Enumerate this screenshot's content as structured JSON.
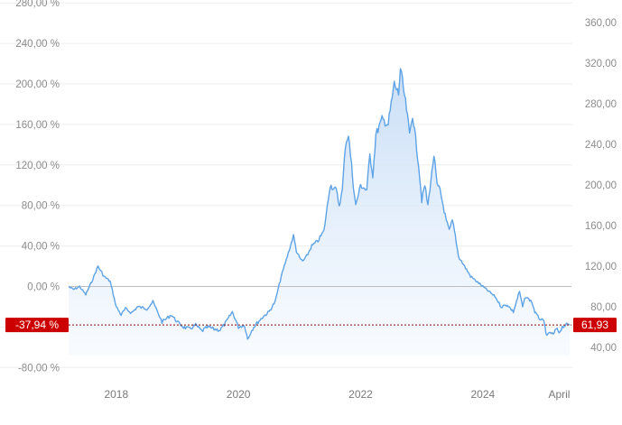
{
  "chart_data": {
    "type": "area",
    "left_axis": {
      "ticks": [
        280,
        240,
        200,
        160,
        120,
        80,
        40,
        0,
        -40,
        -80
      ],
      "tick_labels": [
        "280,00 %",
        "240,00 %",
        "200,00 %",
        "160,00 %",
        "120,00 %",
        "80,00 %",
        "40,00 %",
        "0,00 %",
        "",
        "-80,00 %"
      ],
      "range": [
        -97,
        283
      ]
    },
    "right_axis": {
      "ticks": [
        360,
        320,
        280,
        240,
        200,
        160,
        120,
        80,
        40
      ],
      "tick_labels": [
        "360,00",
        "320,00",
        "280,00",
        "240,00",
        "200,00",
        "160,00",
        "120,00",
        "80,00",
        "40,00"
      ]
    },
    "x_axis": {
      "range": [
        2017.22,
        2025.45
      ],
      "ticks": [
        2018.0,
        2020.0,
        2022.0,
        2024.0,
        2025.25
      ],
      "tick_labels": [
        "2018",
        "2020",
        "2022",
        "2024",
        "April"
      ]
    },
    "baseline_value": 0,
    "current": {
      "percent_label": "-37,94 %",
      "value_label": "61,93",
      "percent": -37.94
    },
    "series": [
      {
        "x": [
          2017.22,
          2017.3,
          2017.4,
          2017.5,
          2017.6,
          2017.7,
          2017.8,
          2017.9,
          2018.0,
          2018.08,
          2018.15,
          2018.25,
          2018.35,
          2018.5,
          2018.6,
          2018.75,
          2018.9,
          2019.0,
          2019.1,
          2019.2,
          2019.3,
          2019.4,
          2019.5,
          2019.6,
          2019.7,
          2019.8,
          2019.9,
          2020.0,
          2020.1,
          2020.15,
          2020.2,
          2020.25,
          2020.32,
          2020.4,
          2020.5,
          2020.6,
          2020.7,
          2020.8,
          2020.9,
          2020.95,
          2021.0,
          2021.05,
          2021.1,
          2021.2,
          2021.3,
          2021.4,
          2021.5,
          2021.6,
          2021.65,
          2021.7,
          2021.75,
          2021.8,
          2021.85,
          2021.88,
          2021.92,
          2022.0,
          2022.1,
          2022.15,
          2022.2,
          2022.25,
          2022.35,
          2022.45,
          2022.55,
          2022.62,
          2022.65,
          2022.7,
          2022.75,
          2022.8,
          2022.85,
          2022.9,
          2022.95,
          2023.0,
          2023.05,
          2023.1,
          2023.2,
          2023.25,
          2023.3,
          2023.35,
          2023.4,
          2023.45,
          2023.5,
          2023.55,
          2023.6,
          2023.65,
          2023.7,
          2023.8,
          2023.9,
          2024.0,
          2024.1,
          2024.2,
          2024.25,
          2024.3,
          2024.4,
          2024.5,
          2024.6,
          2024.65,
          2024.7,
          2024.8,
          2024.85,
          2024.9,
          2025.0,
          2025.05,
          2025.1,
          2025.15,
          2025.2,
          2025.25,
          2025.3,
          2025.35,
          2025.42
        ],
        "y": [
          0,
          -3,
          0,
          -8,
          5,
          20,
          10,
          5,
          -20,
          -28,
          -22,
          -26,
          -20,
          -22,
          -15,
          -35,
          -28,
          -35,
          -40,
          -42,
          -38,
          -44,
          -40,
          -42,
          -43,
          -35,
          -25,
          -40,
          -38,
          -52,
          -45,
          -40,
          -35,
          -30,
          -25,
          -15,
          10,
          30,
          50,
          35,
          28,
          25,
          28,
          40,
          45,
          55,
          100,
          95,
          80,
          95,
          140,
          150,
          120,
          100,
          80,
          100,
          95,
          130,
          110,
          150,
          165,
          160,
          200,
          190,
          215,
          195,
          175,
          150,
          170,
          145,
          120,
          85,
          100,
          80,
          130,
          100,
          95,
          80,
          65,
          55,
          65,
          50,
          30,
          25,
          20,
          10,
          5,
          0,
          -5,
          -10,
          -15,
          -20,
          -18,
          -25,
          -5,
          -20,
          -10,
          -15,
          -25,
          -30,
          -35,
          -50,
          -45,
          -48,
          -42,
          -45,
          -40,
          -38,
          -37.94
        ]
      }
    ],
    "colors": {
      "line": "#5ea3e6",
      "fill_top": "#c6dcf6",
      "fill_bottom": "#f3f8fe",
      "grid": "#ededed",
      "baseline": "#bdbdbd",
      "current_marker": "#cc0000"
    }
  }
}
